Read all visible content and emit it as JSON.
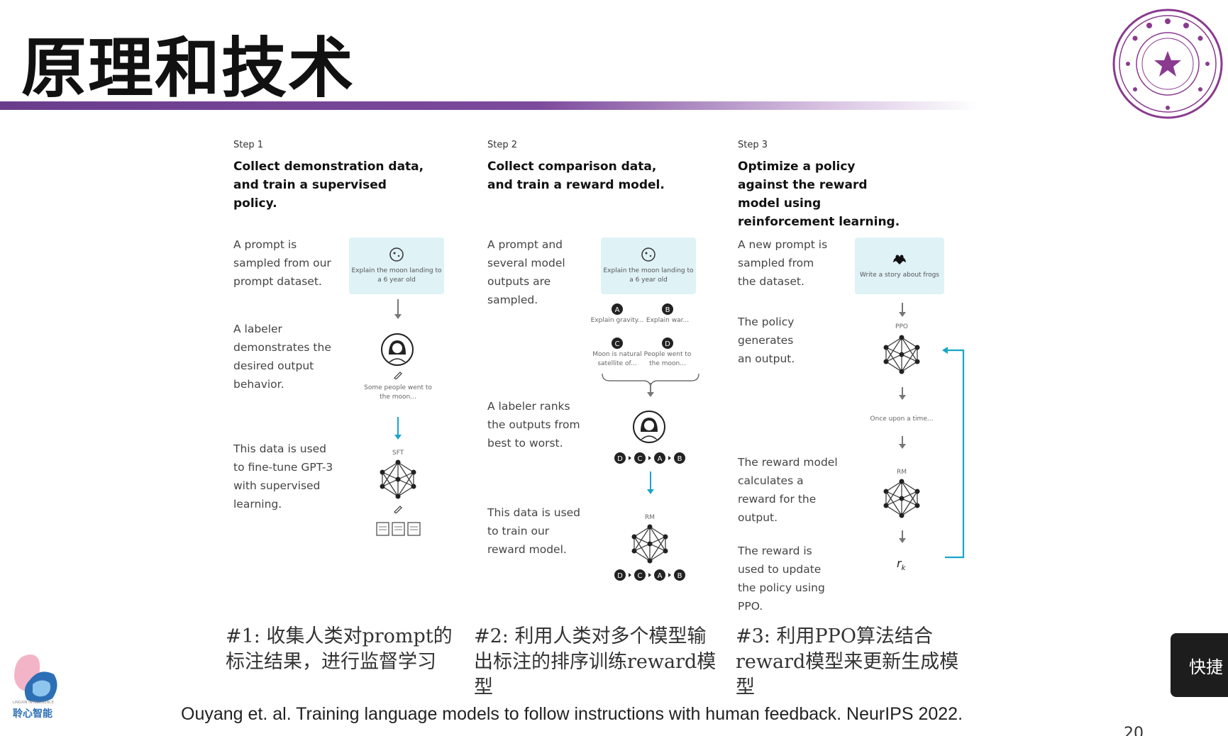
{
  "slide": {
    "title": "原理和技术",
    "page_number": "20",
    "citation": "Ouyang et. al. Training language models to follow instructions with human feedback. NeurIPS 2022.",
    "shortcut_label": "快捷"
  },
  "logo": {
    "name": "聆心智能",
    "subtitle": "LINGXIN INTELLIGENCE"
  },
  "steps": [
    {
      "label": "Step 1",
      "title": "Collect demonstration data, and train a supervised policy.",
      "descriptions": [
        "A prompt is sampled from our prompt dataset.",
        "A labeler demonstrates the desired output behavior.",
        "This data is used to fine-tune GPT-3 with supervised learning."
      ],
      "prompt_text": "Explain the moon landing to a 6 year old",
      "labeler_output": "Some people went to the moon...",
      "model_label": "SFT",
      "caption": "#1: 收集人类对prompt的标注结果，进行监督学习"
    },
    {
      "label": "Step 2",
      "title": "Collect comparison data, and train a reward model.",
      "descriptions": [
        "A prompt and several model outputs are sampled.",
        "A labeler ranks the outputs from best to worst.",
        "This data is used to train our reward model."
      ],
      "prompt_text": "Explain the moon landing to a 6 year old",
      "outputs": [
        {
          "id": "A",
          "text": "Explain gravity..."
        },
        {
          "id": "B",
          "text": "Explain war..."
        },
        {
          "id": "C",
          "text": "Moon is natural satellite of..."
        },
        {
          "id": "D",
          "text": "People went to the moon..."
        }
      ],
      "ranking": [
        "D",
        "C",
        "A",
        "B"
      ],
      "model_label": "RM",
      "caption": "#2: 利用人类对多个模型输出标注的排序训练reward模型"
    },
    {
      "label": "Step 3",
      "title": "Optimize a policy against the reward model using reinforcement learning.",
      "descriptions": [
        "A new prompt is sampled from the dataset.",
        "The policy generates an output.",
        "The reward model calculates a reward for the output.",
        "The reward is used to update the policy using PPO."
      ],
      "prompt_text": "Write a story about frogs",
      "policy_label": "PPO",
      "output_text": "Once upon a time...",
      "model_label": "RM",
      "reward_symbol": "r",
      "reward_sub": "k",
      "caption": "#3: 利用PPO算法结合reward模型来更新生成模型"
    }
  ],
  "colors": {
    "accent_purple": "#6a3d8c",
    "flow_blue": "#19a4cc",
    "prompt_bg": "#dff2f6",
    "seal": "#8a3a8f"
  }
}
